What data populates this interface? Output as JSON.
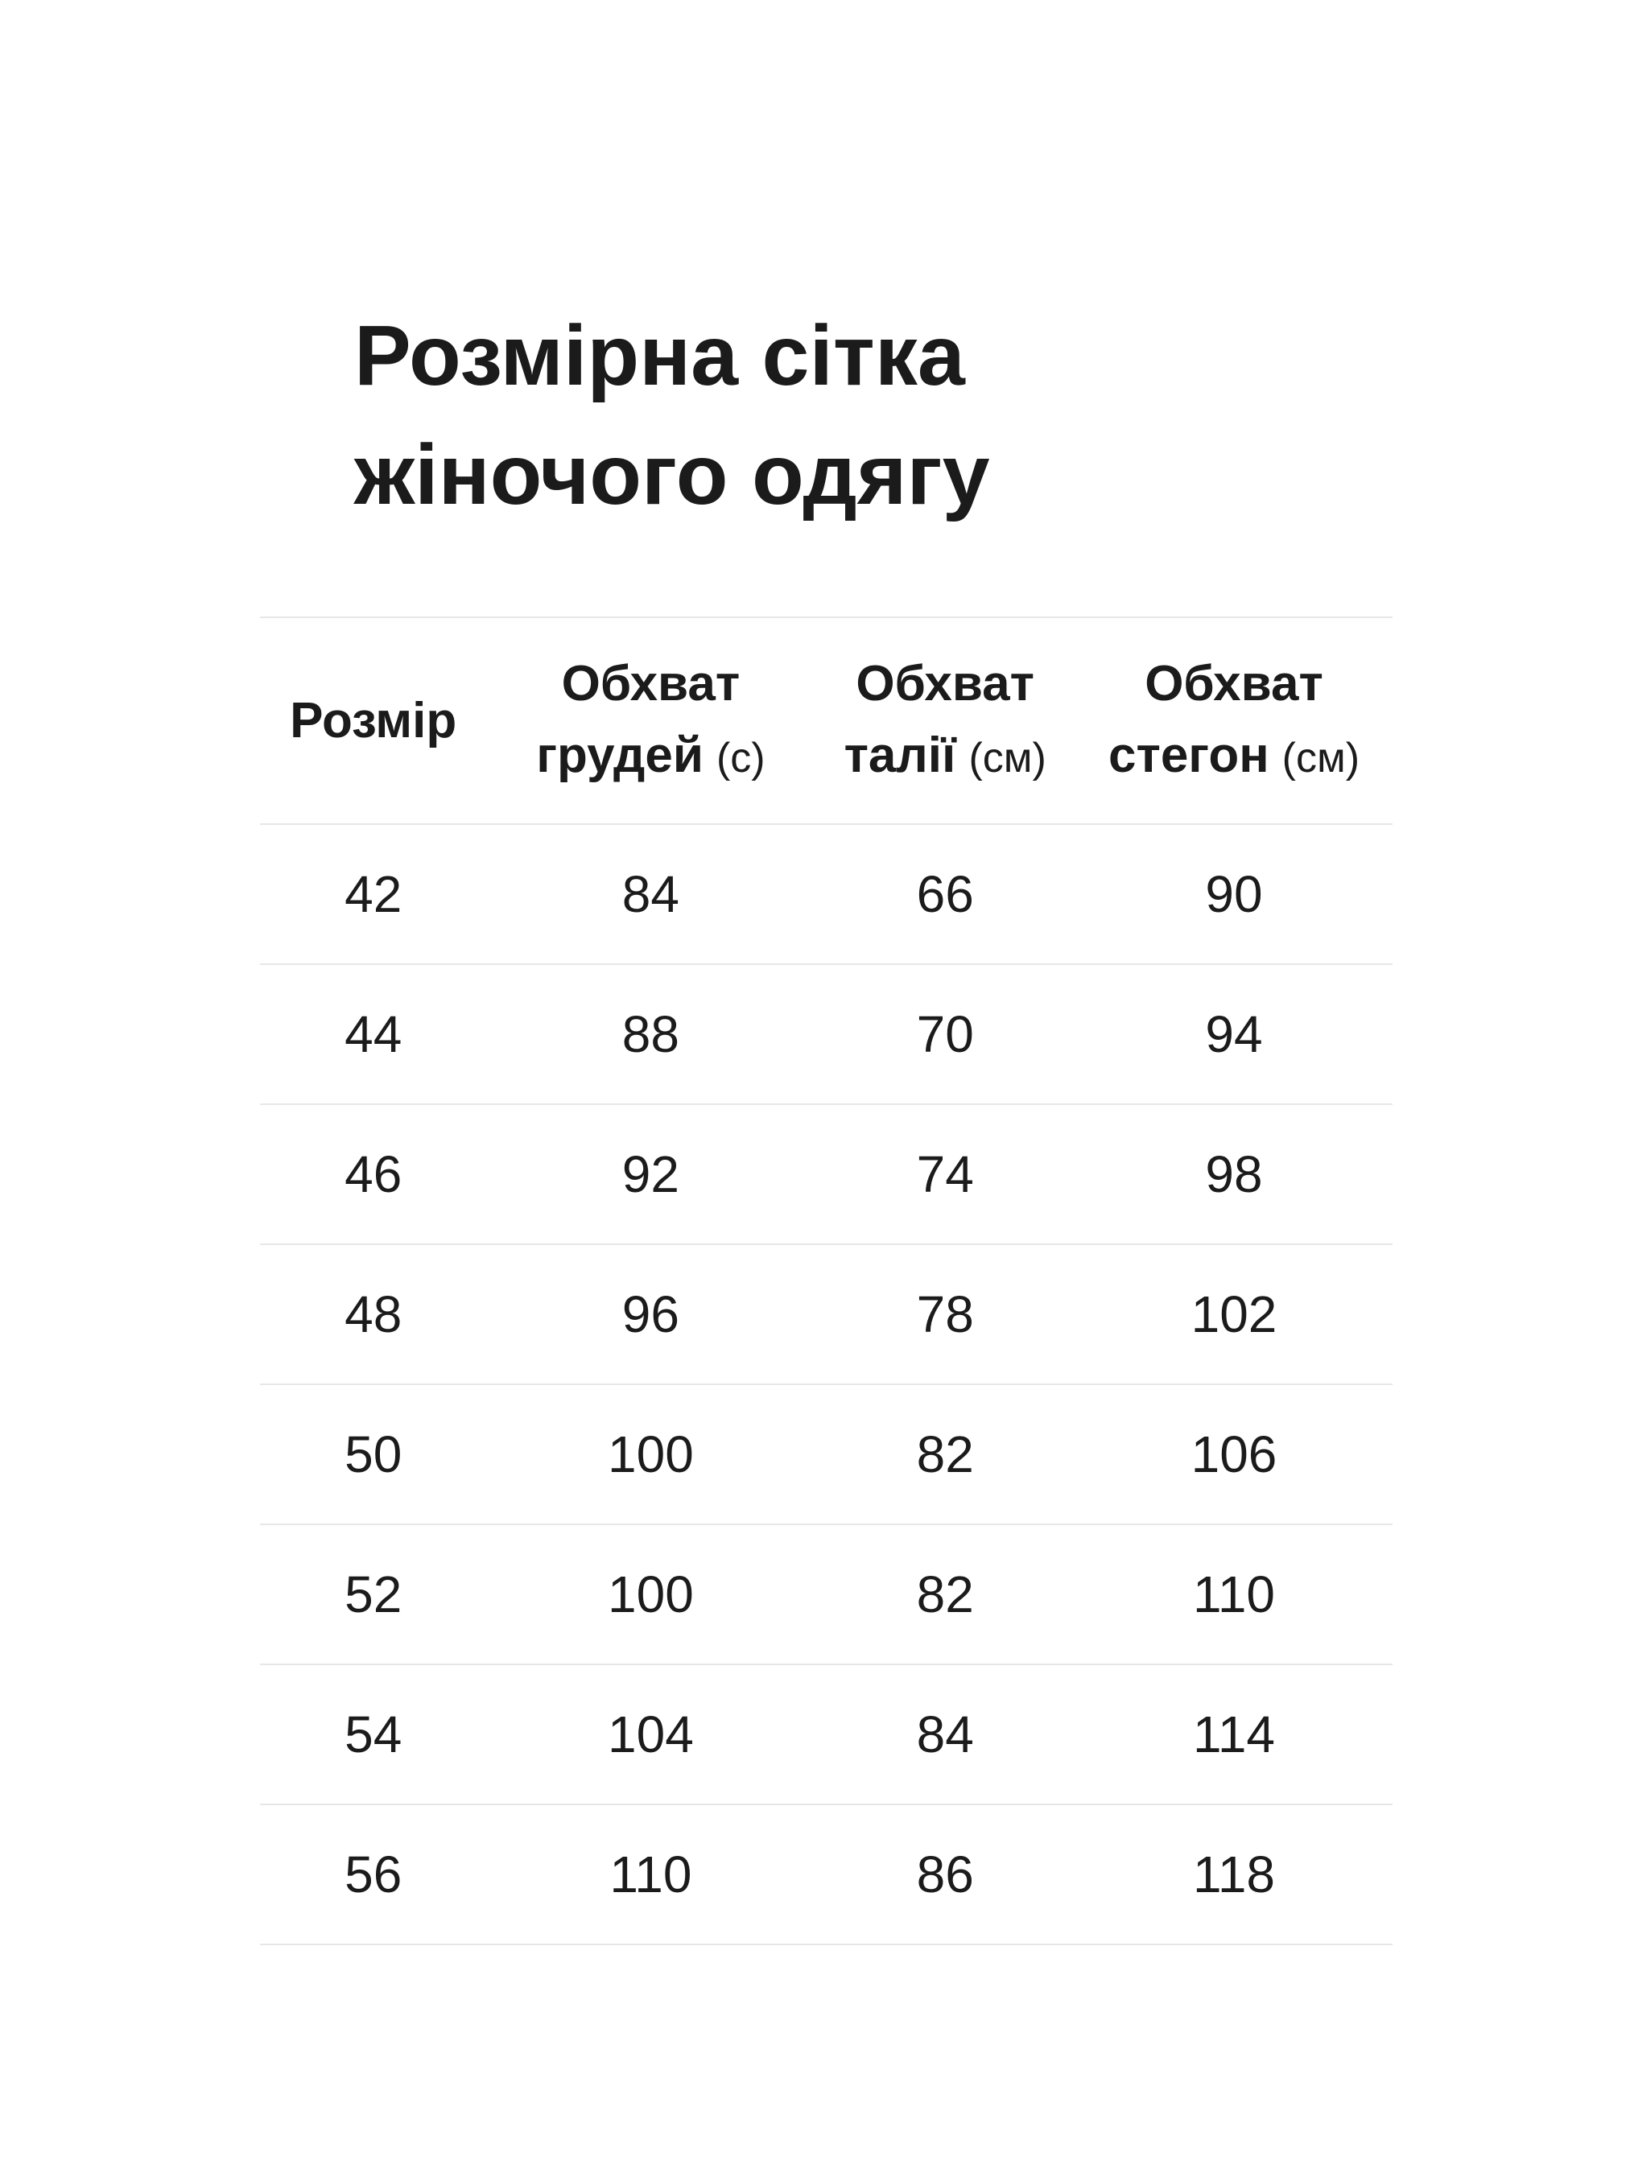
{
  "page": {
    "title_line1": "Розмірна сітка",
    "title_line2": "жіночого одягу"
  },
  "table": {
    "columns": [
      {
        "line1": "Розмір",
        "line2": "",
        "unit": ""
      },
      {
        "line1": "Обхват",
        "line2": "грудей",
        "unit": "(с)"
      },
      {
        "line1": "Обхват",
        "line2": "талії",
        "unit": "(см)"
      },
      {
        "line1": "Обхват",
        "line2": "стегон",
        "unit": "(см)"
      }
    ],
    "rows": [
      [
        "42",
        "84",
        "66",
        "90"
      ],
      [
        "44",
        "88",
        "70",
        "94"
      ],
      [
        "46",
        "92",
        "74",
        "98"
      ],
      [
        "48",
        "96",
        "78",
        "102"
      ],
      [
        "50",
        "100",
        "82",
        "106"
      ],
      [
        "52",
        "100",
        "82",
        "110"
      ],
      [
        "54",
        "104",
        "84",
        "114"
      ],
      [
        "56",
        "110",
        "86",
        "118"
      ]
    ]
  },
  "chart_data": {
    "type": "table",
    "title": "Розмірна сітка жіночого одягу",
    "columns": [
      "Розмір",
      "Обхват грудей (с)",
      "Обхват талії (см)",
      "Обхват стегон (см)"
    ],
    "rows": [
      [
        42,
        84,
        66,
        90
      ],
      [
        44,
        88,
        70,
        94
      ],
      [
        46,
        92,
        74,
        98
      ],
      [
        48,
        96,
        78,
        102
      ],
      [
        50,
        100,
        82,
        106
      ],
      [
        52,
        100,
        82,
        110
      ],
      [
        54,
        104,
        84,
        114
      ],
      [
        56,
        110,
        86,
        118
      ]
    ],
    "layout": {
      "grid": "horizontal-dividers-only",
      "text_color": "#1b1b1b",
      "divider_color": "#e7e7e7",
      "background": "#ffffff"
    }
  },
  "colors": {
    "text": "#1b1b1b",
    "divider": "#e7e7e7",
    "background": "#ffffff"
  }
}
